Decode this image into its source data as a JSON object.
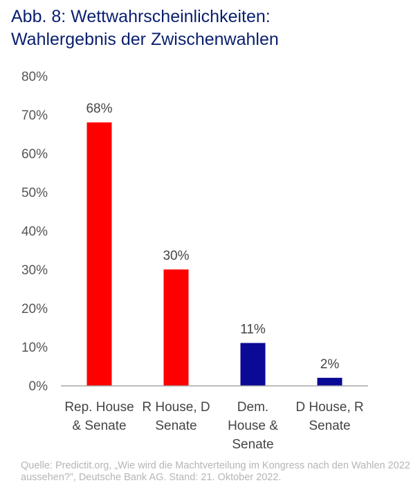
{
  "title": {
    "line1": "Abb. 8: Wettwahrscheinlichkeiten:",
    "line2": "Wahlergebnis der Zwischenwahlen"
  },
  "chart_data": {
    "type": "bar",
    "categories": [
      [
        "Rep. House",
        "& Senate"
      ],
      [
        "R House, D",
        "Senate"
      ],
      [
        "Dem.",
        "House &",
        "Senate"
      ],
      [
        "D House, R",
        "Senate"
      ]
    ],
    "values": [
      68,
      30,
      11,
      2
    ],
    "data_labels": [
      "68%",
      "30%",
      "11%",
      "2%"
    ],
    "colors": [
      "#ff0000",
      "#ff0000",
      "#0a0a96",
      "#0a0a96"
    ],
    "ylim": [
      0,
      80
    ],
    "yticks": [
      0,
      10,
      20,
      30,
      40,
      50,
      60,
      70,
      80
    ],
    "ytick_labels": [
      "0%",
      "10%",
      "20%",
      "30%",
      "40%",
      "50%",
      "60%",
      "70%",
      "80%"
    ],
    "grid": false,
    "legend": "none"
  },
  "source": "Quelle: Predictit.org, „Wie wird die Machtverteilung im Kongress nach den Wahlen 2022 aussehen?”, Deutsche Bank AG. Stand: 21. Oktober 2022."
}
